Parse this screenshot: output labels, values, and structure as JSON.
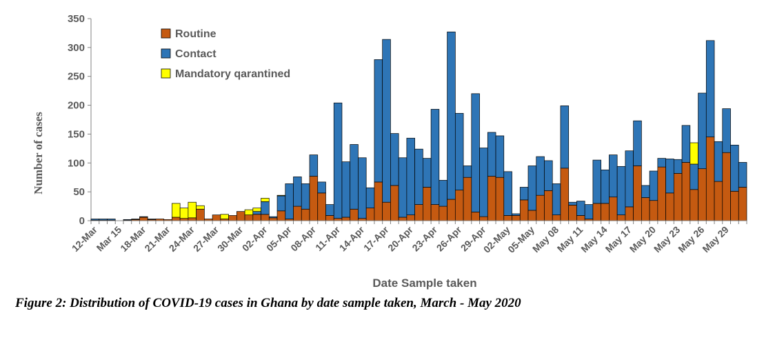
{
  "caption": "Figure 2: Distribution of COVID-19 cases in Ghana by date sample taken, March - May 2020",
  "chart_data": {
    "type": "bar",
    "stacked": true,
    "title": "",
    "xlabel": "Date Sample taken",
    "ylabel": "Number of cases",
    "ylim": [
      0,
      350
    ],
    "yticks": [
      0,
      50,
      100,
      150,
      200,
      250,
      300,
      350
    ],
    "grid": false,
    "legend_position": "top-left",
    "x_tick_labels": [
      "12-Mar",
      "Mar 15",
      "18-Mar",
      "21-Mar",
      "24-Mar",
      "27-Mar",
      "30-Mar",
      "02-Apr",
      "05-Apr",
      "08-Apr",
      "11-Apr",
      "14-Apr",
      "17-Apr",
      "20-Apr",
      "23-Apr",
      "26-Apr",
      "29-Apr",
      "02-May",
      "05-May",
      "May 08",
      "May 11",
      "May 14",
      "May 17",
      "May 20",
      "May 23",
      "May 26",
      "May 29"
    ],
    "x_tick_every": 3,
    "categories": [
      "12-Mar",
      "13-Mar",
      "14-Mar",
      "15-Mar",
      "16-Mar",
      "17-Mar",
      "18-Mar",
      "19-Mar",
      "20-Mar",
      "21-Mar",
      "22-Mar",
      "23-Mar",
      "24-Mar",
      "25-Mar",
      "26-Mar",
      "27-Mar",
      "28-Mar",
      "29-Mar",
      "30-Mar",
      "31-Mar",
      "01-Apr",
      "02-Apr",
      "03-Apr",
      "04-Apr",
      "05-Apr",
      "06-Apr",
      "07-Apr",
      "08-Apr",
      "09-Apr",
      "10-Apr",
      "11-Apr",
      "12-Apr",
      "13-Apr",
      "14-Apr",
      "15-Apr",
      "16-Apr",
      "17-Apr",
      "18-Apr",
      "19-Apr",
      "20-Apr",
      "21-Apr",
      "22-Apr",
      "23-Apr",
      "24-Apr",
      "25-Apr",
      "26-Apr",
      "27-Apr",
      "28-Apr",
      "29-Apr",
      "30-Apr",
      "01-May",
      "02-May",
      "03-May",
      "04-May",
      "05-May",
      "06-May",
      "07-May",
      "08-May",
      "09-May",
      "10-May",
      "11-May",
      "12-May",
      "13-May",
      "14-May",
      "15-May",
      "16-May",
      "17-May",
      "18-May",
      "19-May",
      "20-May",
      "21-May",
      "22-May",
      "23-May",
      "24-May",
      "25-May",
      "26-May",
      "27-May",
      "28-May",
      "29-May",
      "30-May",
      "31-May"
    ],
    "series": [
      {
        "name": "Routine",
        "color": "#C55A11",
        "values": [
          1,
          1,
          1,
          0,
          1,
          2,
          6,
          2,
          3,
          2,
          6,
          4,
          5,
          20,
          3,
          10,
          3,
          9,
          16,
          10,
          11,
          11,
          5,
          17,
          3,
          25,
          20,
          77,
          48,
          9,
          4,
          6,
          20,
          4,
          22,
          67,
          32,
          61,
          6,
          10,
          28,
          58,
          28,
          25,
          37,
          53,
          75,
          15,
          7,
          77,
          75,
          9,
          9,
          36,
          18,
          44,
          52,
          10,
          91,
          27,
          9,
          3,
          30,
          30,
          41,
          10,
          24,
          95,
          40,
          35,
          93,
          48,
          82,
          101,
          54,
          90,
          145,
          68,
          118,
          51,
          58
        ]
      },
      {
        "name": "Contact",
        "color": "#2E75B6",
        "values": [
          2,
          2,
          2,
          0,
          1,
          1,
          1,
          1,
          0,
          0,
          0,
          0,
          0,
          0,
          0,
          0,
          0,
          0,
          0,
          0,
          5,
          22,
          2,
          26,
          61,
          51,
          44,
          37,
          19,
          19,
          200,
          96,
          112,
          105,
          35,
          212,
          282,
          90,
          103,
          133,
          96,
          50,
          165,
          45,
          290,
          133,
          20,
          205,
          119,
          76,
          72,
          76,
          3,
          22,
          77,
          67,
          52,
          54,
          108,
          5,
          25,
          25,
          75,
          58,
          73,
          84,
          97,
          78,
          21,
          51,
          15,
          59,
          24,
          64,
          44,
          131,
          167,
          69,
          76,
          80,
          43
        ]
      },
      {
        "name": "Mandatory  qarantined",
        "color": "#FFFF00",
        "values": [
          0,
          0,
          0,
          0,
          0,
          0,
          0,
          0,
          0,
          0,
          24,
          18,
          27,
          6,
          0,
          0,
          8,
          0,
          0,
          9,
          6,
          6,
          0,
          1,
          0,
          0,
          0,
          0,
          0,
          0,
          0,
          0,
          0,
          0,
          0,
          0,
          0,
          0,
          0,
          0,
          0,
          0,
          0,
          0,
          0,
          0,
          0,
          0,
          0,
          0,
          0,
          0,
          0,
          0,
          0,
          0,
          0,
          0,
          0,
          0,
          0,
          0,
          0,
          0,
          0,
          0,
          0,
          0,
          0,
          0,
          0,
          0,
          0,
          0,
          37,
          0,
          0,
          0,
          0,
          0,
          0
        ]
      }
    ]
  }
}
